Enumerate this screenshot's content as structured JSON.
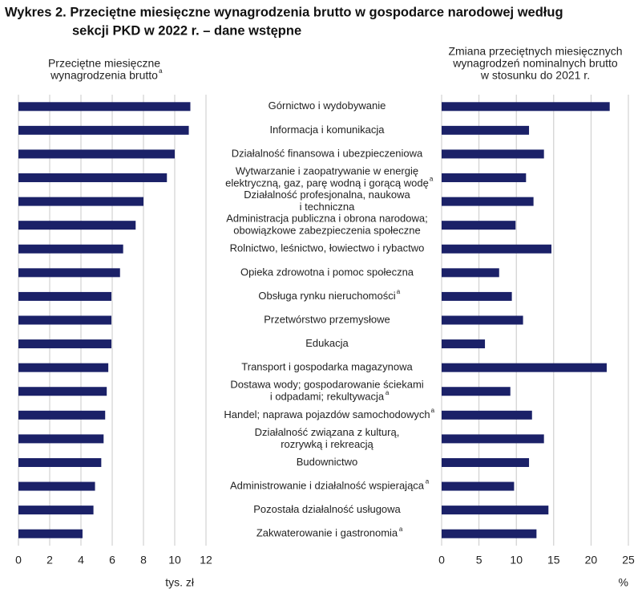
{
  "title": [
    "Wykres 2. Przeciętne miesięczne wynagrodzenia brutto w gospodarce narodowej według",
    "sekcji PKD w 2022 r. – dane wstępne"
  ],
  "chart_data": [
    {
      "type": "bar",
      "orientation": "horizontal",
      "color": "#1b2168",
      "subtitle": [
        "Przeciętne miesięczne",
        "wynagrodzenia brutto"
      ],
      "subtitle_note": "a",
      "x_label": "tys. zł",
      "categories": [
        [
          "Górnictwo i wydobywanie"
        ],
        [
          "Informacja i komunikacja"
        ],
        [
          "Działalność finansowa i ubezpieczeniowa"
        ],
        [
          "Wytwarzanie i zaopatrywanie w energię",
          "elektryczną, gaz, parę wodną i gorącą wodę"
        ],
        [
          "Działalność profesjonalna, naukowa",
          "i techniczna"
        ],
        [
          "Administracja publiczna i obrona narodowa;",
          "obowiązkowe zabezpieczenia społeczne"
        ],
        [
          "Rolnictwo, leśnictwo, łowiectwo i rybactwo"
        ],
        [
          "Opieka zdrowotna i pomoc społeczna"
        ],
        [
          "Obsługa rynku nieruchomości"
        ],
        [
          "Przetwórstwo przemysłowe"
        ],
        [
          "Edukacja"
        ],
        [
          "Transport i gospodarka magazynowa"
        ],
        [
          "Dostawa wody; gospodarowanie ściekami",
          "i odpadami; rekultywacja"
        ],
        [
          "Handel; naprawa pojazdów samochodowych"
        ],
        [
          "Działalność związana z kulturą,",
          "rozrywką i rekreacją"
        ],
        [
          "Budownictwo"
        ],
        [
          "Administrowanie i działalność wspierająca"
        ],
        [
          "Pozostała działalność usługowa"
        ],
        [
          "Zakwaterowanie i gastronomia"
        ]
      ],
      "category_notes": [
        null,
        null,
        null,
        "a",
        null,
        null,
        null,
        null,
        "a",
        null,
        null,
        null,
        "a",
        "a",
        null,
        null,
        "a",
        null,
        "a"
      ],
      "values": [
        11.0,
        10.9,
        10.0,
        9.5,
        8.0,
        7.5,
        6.7,
        6.5,
        5.95,
        5.95,
        5.95,
        5.75,
        5.65,
        5.55,
        5.45,
        5.3,
        4.9,
        4.8,
        4.1
      ],
      "xlim": [
        0,
        12
      ],
      "xticks": [
        0,
        2,
        4,
        6,
        8,
        10,
        12
      ],
      "grid": true
    },
    {
      "type": "bar",
      "orientation": "horizontal",
      "color": "#1b2168",
      "subtitle": [
        "Zmiana przeciętnych miesięcznych",
        "wynagrodzeń nominalnych brutto",
        "w stosunku do 2021 r."
      ],
      "x_label": "%",
      "values": [
        22.5,
        11.7,
        13.7,
        11.3,
        12.3,
        9.9,
        14.7,
        7.7,
        9.4,
        10.9,
        5.8,
        22.1,
        9.2,
        12.1,
        13.7,
        11.7,
        9.7,
        14.3,
        12.7
      ],
      "xlim": [
        0,
        25
      ],
      "xticks": [
        0,
        5,
        10,
        15,
        20,
        25
      ],
      "grid": true
    }
  ]
}
